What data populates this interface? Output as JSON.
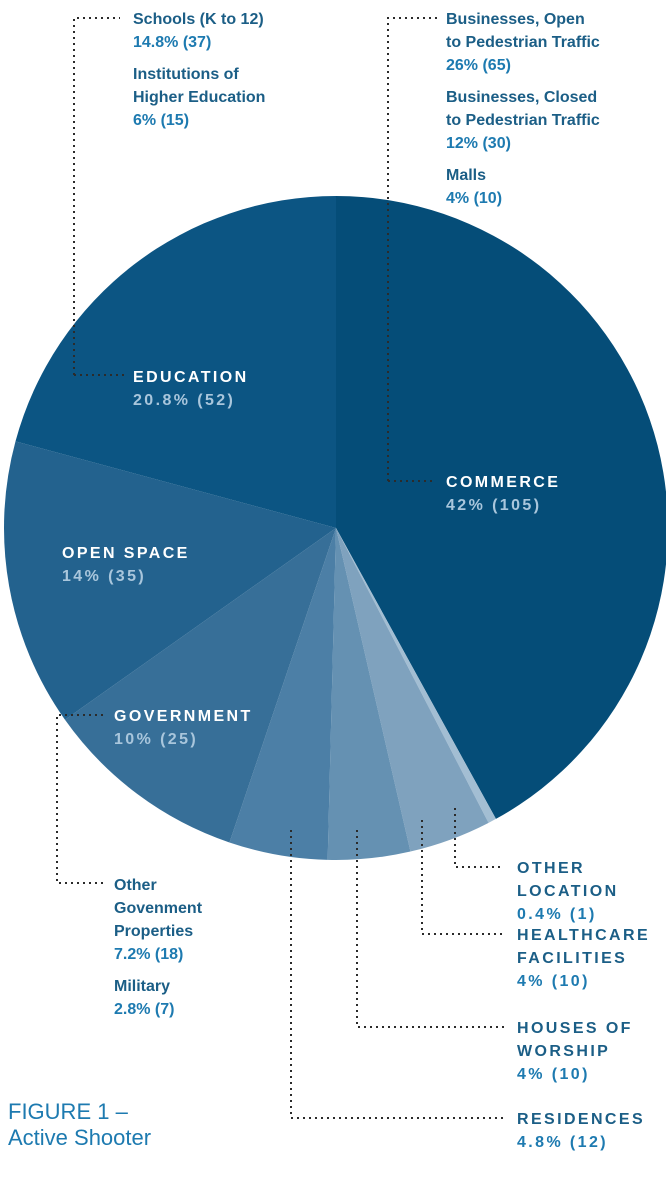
{
  "chart_data": {
    "type": "pie",
    "slices": [
      {
        "label": "COMMERCE",
        "value": 42,
        "value_label": "42% (105)",
        "color": "#054d78"
      },
      {
        "label": "OTHER LOCATION",
        "value": 0.4,
        "value_label": "0.4% (1)",
        "color": "#a3bed3"
      },
      {
        "label": "HEALTHCARE FACILITIES",
        "value": 4,
        "value_label": "4% (10)",
        "color": "#7fa2be"
      },
      {
        "label": "HOUSES OF WORSHIP",
        "value": 4,
        "value_label": "4% (10)",
        "color": "#6591b2"
      },
      {
        "label": "RESIDENCES",
        "value": 4.8,
        "value_label": "4.8% (12)",
        "color": "#4c7fa6"
      },
      {
        "label": "GOVERNMENT",
        "value": 10,
        "value_label": "10% (25)",
        "color": "#376f98"
      },
      {
        "label": "OPEN SPACE",
        "value": 14,
        "value_label": "14% (35)",
        "color": "#23628e"
      },
      {
        "label": "EDUCATION",
        "value": 20.8,
        "value_label": "20.8% (52)",
        "color": "#0c5583"
      }
    ],
    "subcategories": {
      "education": [
        {
          "name": "Schools (K to 12)",
          "value_label": "14.8% (37)"
        },
        {
          "name": "Institutions of Higher Education",
          "value_label": "6% (15)"
        }
      ],
      "commerce": [
        {
          "name": "Businesses, Open to Pedestrian Traffic",
          "value_label": "26% (65)"
        },
        {
          "name": "Businesses, Closed to Pedestrian Traffic",
          "value_label": "12% (30)"
        },
        {
          "name": "Malls",
          "value_label": "4% (10)"
        }
      ],
      "government": [
        {
          "name": "Other Govenment Properties",
          "value_label": "7.2% (18)"
        },
        {
          "name": "Military",
          "value_label": "2.8% (7)"
        }
      ]
    },
    "caption": "FIGURE 1 – Active Shooter"
  }
}
